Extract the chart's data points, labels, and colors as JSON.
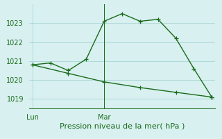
{
  "title": "Pression niveau de la mer( hPa )",
  "bg_color": "#d8f0f0",
  "grid_color": "#aed8d8",
  "line_color": "#1a6b1a",
  "ylim": [
    1018.5,
    1024.0
  ],
  "yticks": [
    1019,
    1020,
    1021,
    1022,
    1023
  ],
  "xlim_days": [
    -0.05,
    2.55
  ],
  "day_ticks": [
    0,
    1
  ],
  "day_labels": [
    "Lun",
    "Mar"
  ],
  "vline_at": 1,
  "line1_x": [
    0.0,
    0.25,
    0.5,
    0.75,
    1.0,
    1.25,
    1.5,
    1.75,
    2.0,
    2.25,
    2.5
  ],
  "line1_y": [
    1020.8,
    1020.9,
    1020.5,
    1021.1,
    1023.1,
    1023.5,
    1023.1,
    1023.2,
    1022.2,
    1020.6,
    1019.1
  ],
  "line2_x": [
    0.0,
    0.5,
    1.0,
    1.5,
    2.0,
    2.5
  ],
  "line2_y": [
    1020.8,
    1020.35,
    1019.9,
    1019.6,
    1019.35,
    1019.1
  ],
  "marker_style": "+",
  "marker_size": 4,
  "linewidth": 1.0,
  "xlabel_fontsize": 8,
  "tick_fontsize": 7
}
